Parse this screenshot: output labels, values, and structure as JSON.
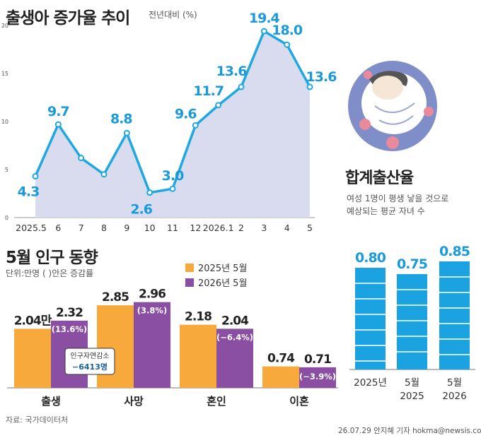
{
  "colors": {
    "line": "#1ea7e1",
    "area": "#d9dcef",
    "orange": "#f7a93b",
    "purple": "#8a4ea3",
    "blue": "#1aa3e0",
    "label_blue": "#1a9ad8",
    "text": "#222222"
  },
  "line_chart": {
    "title": "출생아 증가율 추이",
    "subtitle": "전년대비  (%)",
    "chart_data": {
      "type": "area",
      "x": [
        "2025.5",
        "6",
        "7",
        "8",
        "9",
        "10",
        "11",
        "12",
        "2026.1",
        "2",
        "3",
        "4",
        "5"
      ],
      "values": [
        4.3,
        9.7,
        6.2,
        4.5,
        8.8,
        2.6,
        3.0,
        9.6,
        11.7,
        13.6,
        19.4,
        18.0,
        13.6
      ],
      "labels": [
        "4.3",
        "9.7",
        "",
        "",
        "8.8",
        "2.6",
        "3.0",
        "9.6",
        "11.7",
        "13.6",
        "19.4",
        "18.0",
        "13.6"
      ],
      "ylim": [
        0,
        20
      ],
      "yticks": [
        "0",
        "5",
        "10",
        "15",
        "20"
      ]
    }
  },
  "tfr_chart": {
    "title": "합계출산율",
    "desc_line1": "여성 1명이 평생 낳을 것으로",
    "desc_line2": "예상되는 평균 자녀 수",
    "chart_data": {
      "type": "bar",
      "categories": [
        [
          "2025년"
        ],
        [
          "5월",
          "2025"
        ],
        [
          "5월",
          "2026"
        ]
      ],
      "values": [
        0.8,
        0.75,
        0.85
      ],
      "labels": [
        "0.80",
        "0.75",
        "0.85"
      ]
    }
  },
  "pop_chart": {
    "title": "5월 인구 동향",
    "unit_note": "단위:만명 ( )안은  증감률",
    "chart_data": {
      "type": "bar",
      "categories": [
        "출생",
        "사망",
        "혼인",
        "이혼"
      ],
      "series": [
        {
          "name": "2025년 5월",
          "values": [
            2.04,
            2.85,
            2.18,
            0.74
          ],
          "labels": [
            "2.04만",
            "2.85",
            "2.18",
            "0.74"
          ]
        },
        {
          "name": "2026년 5월",
          "values": [
            2.32,
            2.96,
            2.04,
            0.71
          ],
          "labels": [
            "2.32",
            "2.96",
            "2.04",
            "0.71"
          ],
          "rates": [
            "(13.6%)",
            "(3.8%)",
            "(−6.4%)",
            "(−3.9%)"
          ]
        }
      ]
    },
    "callout_line1": "인구자연감소",
    "callout_line2": "−6413명"
  },
  "source": "자료: 국가데이터처",
  "credit": "26.07.29 안지혜 기자  hokma@newsis.com"
}
